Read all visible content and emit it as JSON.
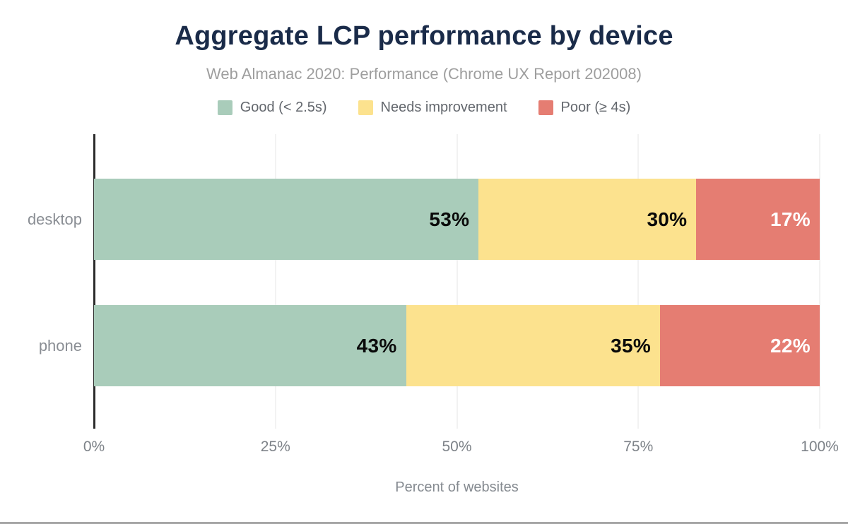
{
  "colors": {
    "title_navy": "#1a2b49",
    "good_green": "#a9ccba",
    "needs_improvement_yellow": "#fce28e",
    "poor_red": "#e57d72",
    "axis_line": "#2b2b2b",
    "gridline": "#f2f2f2",
    "bottom_rule": "#a6a6a6"
  },
  "chart_data": {
    "type": "bar",
    "stacked": true,
    "orientation": "horizontal",
    "title": "Aggregate LCP performance by device",
    "subtitle": "Web Almanac 2020: Performance (Chrome UX Report 202008)",
    "xlabel": "Percent of websites",
    "categories": [
      "desktop",
      "phone"
    ],
    "series": [
      {
        "key": "good",
        "name": "Good (< 2.5s)",
        "color": "#a9ccba",
        "label_color": "#0a0a0a",
        "values": [
          53,
          43
        ]
      },
      {
        "key": "needs-improvement",
        "name": "Needs improvement",
        "color": "#fce28e",
        "label_color": "#0a0a0a",
        "values": [
          30,
          35
        ]
      },
      {
        "key": "poor",
        "name": "Poor (≥ 4s)",
        "color": "#e57d72",
        "label_color": "#ffffff",
        "values": [
          17,
          22
        ]
      }
    ],
    "x_ticks": [
      "0%",
      "25%",
      "50%",
      "75%",
      "100%"
    ],
    "xlim": [
      0,
      100
    ],
    "grid": true,
    "legend_position": "top",
    "value_suffix": "%"
  }
}
